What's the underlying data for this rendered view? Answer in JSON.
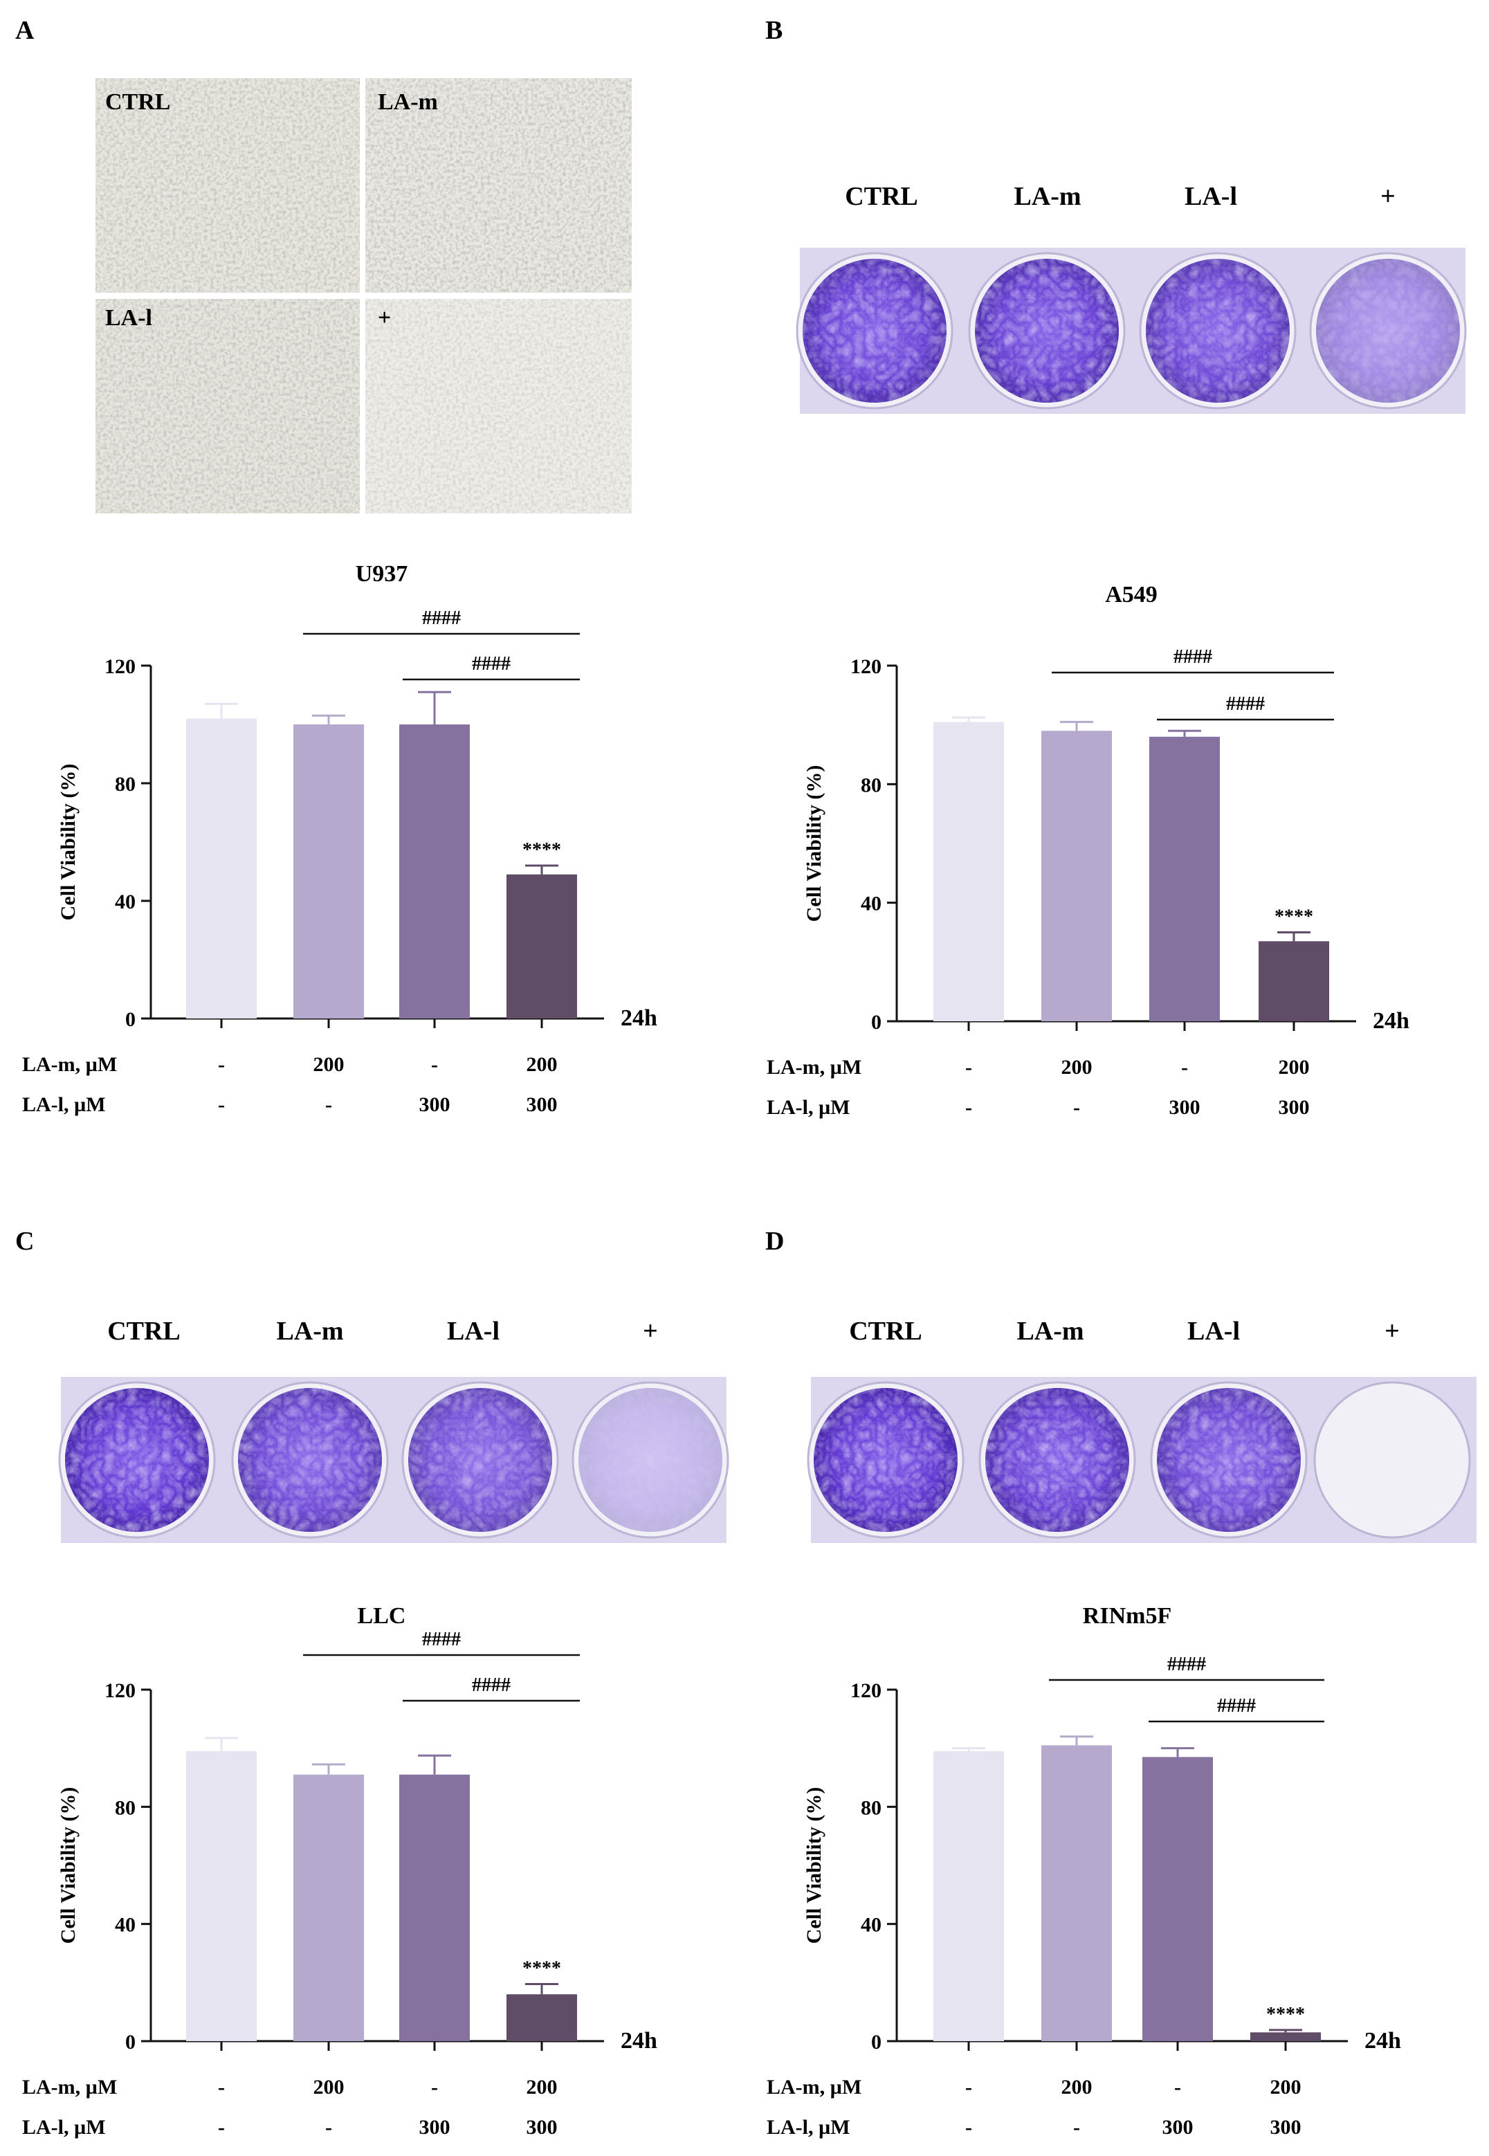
{
  "panels": [
    "A",
    "B",
    "C",
    "D"
  ],
  "micrographs": [
    "CTRL",
    "LA-m",
    "LA-l",
    "+"
  ],
  "well_labels": [
    "CTRL",
    "LA-m",
    "LA-l",
    "+"
  ],
  "time_label": "24h",
  "table_rows": [
    {
      "label": "LA-m, µM",
      "values": [
        "-",
        "200",
        "-",
        "200"
      ]
    },
    {
      "label": "LA-l, µM",
      "values": [
        "-",
        "-",
        "300",
        "300"
      ]
    }
  ],
  "colors": {
    "bars": [
      "#e6e4f1",
      "#b5aacd",
      "#85729f",
      "#5f4c67"
    ],
    "crystal_violet": "#5a2fd0",
    "plate": "#dcd6ee"
  },
  "well_stain": {
    "B": [
      0.95,
      0.95,
      0.9,
      0.55
    ],
    "C": [
      1.0,
      0.9,
      0.85,
      0.3
    ],
    "D": [
      1.0,
      0.95,
      0.9,
      0.0
    ]
  },
  "chart_data": [
    {
      "type": "bar",
      "title": "U937",
      "ylabel": "Cell Viability (%)",
      "ylim": [
        0,
        120
      ],
      "yticks": [
        0,
        40,
        80,
        120
      ],
      "categories": [
        "CTRL",
        "LA-m",
        "LA-l",
        "LA-m+LA-l"
      ],
      "values": [
        102,
        100,
        100,
        49
      ],
      "errors": [
        5,
        3,
        11,
        3
      ],
      "annotations": {
        "star": "****",
        "hash_long": "####",
        "hash_short": "####"
      }
    },
    {
      "type": "bar",
      "title": "A549",
      "ylabel": "Cell Viability (%)",
      "ylim": [
        0,
        120
      ],
      "yticks": [
        0,
        40,
        80,
        120
      ],
      "categories": [
        "CTRL",
        "LA-m",
        "LA-l",
        "LA-m+LA-l"
      ],
      "values": [
        101,
        98,
        96,
        27
      ],
      "errors": [
        1.5,
        3,
        2,
        3
      ],
      "annotations": {
        "star": "****",
        "hash_long": "####",
        "hash_short": "####"
      }
    },
    {
      "type": "bar",
      "title": "LLC",
      "ylabel": "Cell Viability (%)",
      "ylim": [
        0,
        120
      ],
      "yticks": [
        0,
        40,
        80,
        120
      ],
      "categories": [
        "CTRL",
        "LA-m",
        "LA-l",
        "LA-m+LA-l"
      ],
      "values": [
        99,
        91,
        91,
        16
      ],
      "errors": [
        4.5,
        3.5,
        6.5,
        3.5
      ],
      "annotations": {
        "star": "****",
        "hash_long": "####",
        "hash_short": "####"
      }
    },
    {
      "type": "bar",
      "title": "RINm5F",
      "ylabel": "Cell Viability (%)",
      "ylim": [
        0,
        120
      ],
      "yticks": [
        0,
        40,
        80,
        120
      ],
      "categories": [
        "CTRL",
        "LA-m",
        "LA-l",
        "LA-m+LA-l"
      ],
      "values": [
        99,
        101,
        97,
        3
      ],
      "errors": [
        1,
        3,
        3,
        0.8
      ],
      "annotations": {
        "star": "****",
        "hash_long": "####",
        "hash_short": "####"
      }
    }
  ]
}
